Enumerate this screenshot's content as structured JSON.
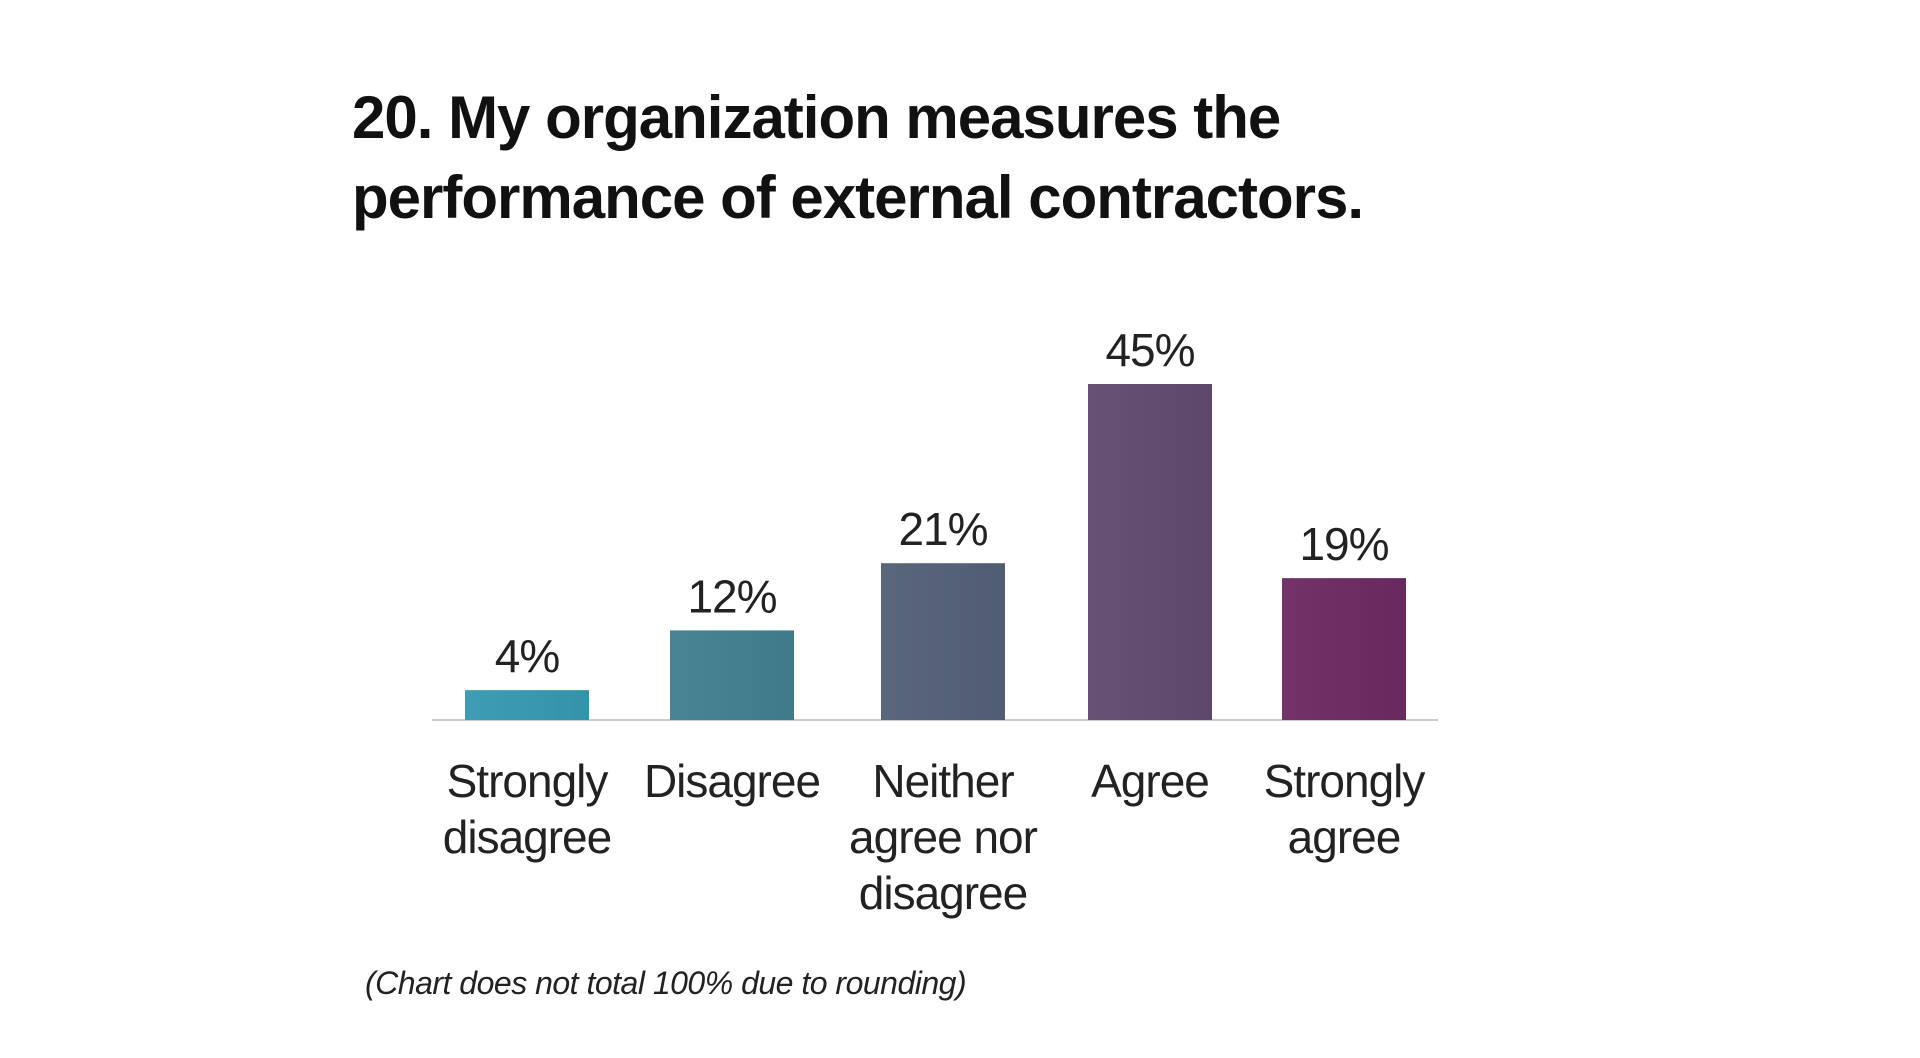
{
  "title_lines": [
    "20. My organization measures the",
    "performance of external contractors."
  ],
  "footnote": "(Chart does not total 100% due to rounding)",
  "chart_data": {
    "type": "bar",
    "title": "20. My organization measures the performance of external contractors.",
    "categories": [
      [
        "Strongly",
        "disagree"
      ],
      [
        "Disagree"
      ],
      [
        "Neither",
        "agree nor",
        "disagree"
      ],
      [
        "Agree"
      ],
      [
        "Strongly",
        "agree"
      ]
    ],
    "values": [
      4,
      12,
      21,
      45,
      19
    ],
    "value_labels": [
      "4%",
      "12%",
      "21%",
      "45%",
      "19%"
    ],
    "unit": "%",
    "xlabel": "",
    "ylabel": "",
    "ylim": [
      0,
      45
    ],
    "grid": false,
    "legend": "none",
    "colors": [
      "#3a98b0",
      "#44818f",
      "#566377",
      "#644e70",
      "#6d2f64"
    ],
    "baseline_color": "#cccccc"
  }
}
